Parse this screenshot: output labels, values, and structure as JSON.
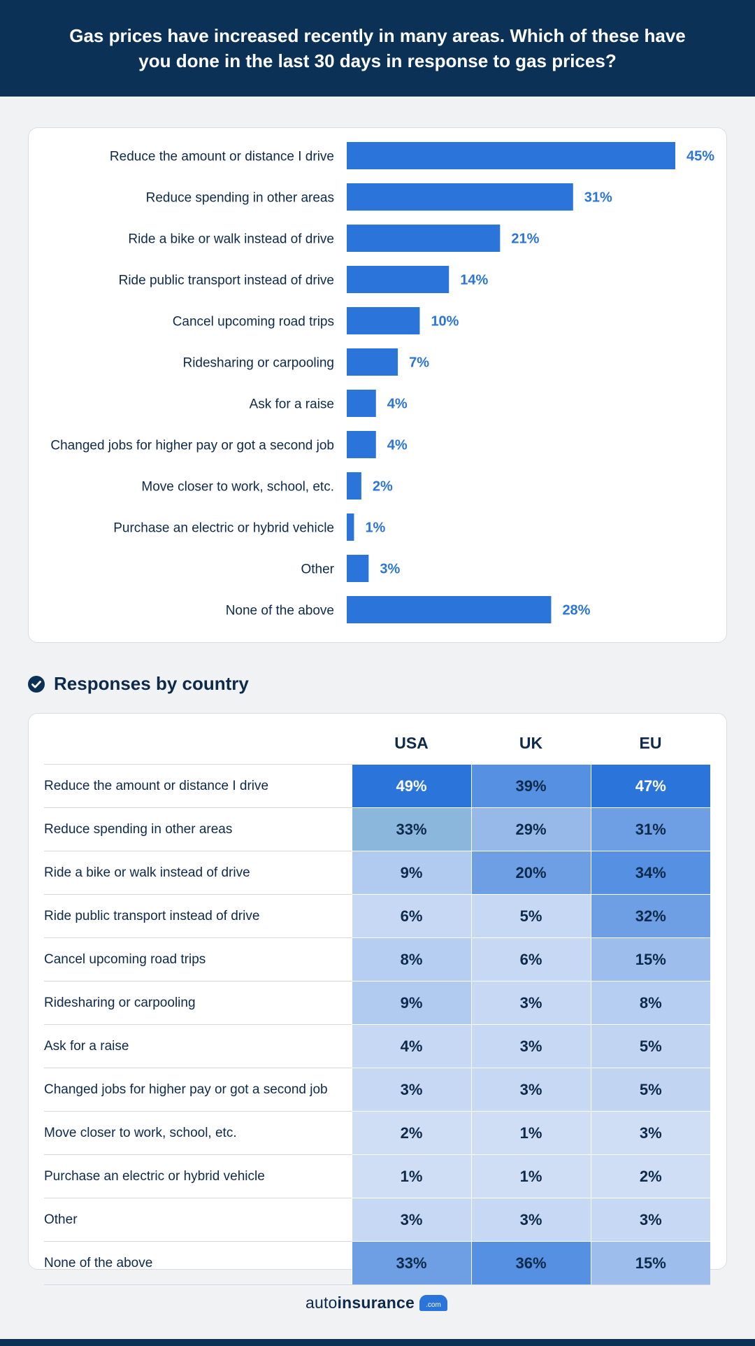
{
  "header": {
    "title": "Gas prices have increased recently in many areas. Which of these have you done in the last 30 days in response to gas prices?"
  },
  "chart_data": [
    {
      "type": "bar",
      "orientation": "horizontal",
      "categories": [
        "Reduce the amount or distance I drive",
        "Reduce spending in other areas",
        "Ride a bike or walk instead of drive",
        "Ride public transport instead of drive",
        "Cancel upcoming road trips",
        "Ridesharing or carpooling",
        "Ask for a raise",
        "Changed jobs for higher pay or got a second job",
        "Move closer to work, school, etc.",
        "Purchase an electric or hybrid vehicle",
        "Other",
        "None of the above"
      ],
      "values": [
        45,
        31,
        21,
        14,
        10,
        7,
        4,
        4,
        2,
        1,
        3,
        28
      ],
      "value_labels": [
        "45%",
        "31%",
        "21%",
        "14%",
        "10%",
        "7%",
        "4%",
        "4%",
        "2%",
        "1%",
        "3%",
        "28%"
      ],
      "unit": "%",
      "xlim": [
        0,
        45
      ],
      "bar_color": "#2b74d9",
      "label_color": "#2b74d9"
    },
    {
      "type": "table",
      "title": "Responses by country",
      "columns": [
        "USA",
        "UK",
        "EU"
      ],
      "rows": [
        {
          "label": "Reduce the amount or distance I drive",
          "values": [
            "49%",
            "39%",
            "47%"
          ]
        },
        {
          "label": "Reduce spending in other areas",
          "values": [
            "33%",
            "29%",
            "31%"
          ]
        },
        {
          "label": "Ride a bike or walk instead of drive",
          "values": [
            "9%",
            "20%",
            "34%"
          ]
        },
        {
          "label": "Ride public transport instead of drive",
          "values": [
            "6%",
            "5%",
            "32%"
          ]
        },
        {
          "label": "Cancel upcoming road trips",
          "values": [
            "8%",
            "6%",
            "15%"
          ]
        },
        {
          "label": "Ridesharing or carpooling",
          "values": [
            "9%",
            "3%",
            "8%"
          ]
        },
        {
          "label": "Ask for a raise",
          "values": [
            "4%",
            "3%",
            "5%"
          ]
        },
        {
          "label": "Changed jobs for higher pay or got a second job",
          "values": [
            "3%",
            "3%",
            "5%"
          ]
        },
        {
          "label": "Move closer to work, school, etc.",
          "values": [
            "2%",
            "1%",
            "3%"
          ]
        },
        {
          "label": "Purchase an electric or hybrid vehicle",
          "values": [
            "1%",
            "1%",
            "2%"
          ]
        },
        {
          "label": "Other",
          "values": [
            "3%",
            "3%",
            "3%"
          ]
        },
        {
          "label": "None of the above",
          "values": [
            "33%",
            "36%",
            "15%"
          ]
        }
      ],
      "cell_colors": [
        [
          "#2b74d9",
          "#5590e2",
          "#2b74d9"
        ],
        [
          "#8bb7dc",
          "#96b9ea",
          "#6e9fe4"
        ],
        [
          "#b1cbf0",
          "#6e9fe4",
          "#5590e2"
        ],
        [
          "#c6d8f3",
          "#c6d8f3",
          "#6e9fe4"
        ],
        [
          "#b6cef1",
          "#c6d8f3",
          "#9dbded"
        ],
        [
          "#b1cbf0",
          "#c6d8f3",
          "#b6cef1"
        ],
        [
          "#c6d8f3",
          "#c6d8f3",
          "#c1d5f3"
        ],
        [
          "#c6d8f3",
          "#c6d8f3",
          "#c1d5f3"
        ],
        [
          "#cfdef5",
          "#cfdef5",
          "#cfdef5"
        ],
        [
          "#cfdef5",
          "#cfdef5",
          "#cfdef5"
        ],
        [
          "#c6d8f3",
          "#c6d8f3",
          "#c6d8f3"
        ],
        [
          "#6e9fe4",
          "#5590e2",
          "#9dbded"
        ]
      ],
      "dark_text_color": "#0d2a4a",
      "light_text_color": "#ffffff"
    }
  ],
  "footer": {
    "brand_prefix": "auto",
    "brand_main": "insurance",
    "brand_suffix": ".com"
  }
}
